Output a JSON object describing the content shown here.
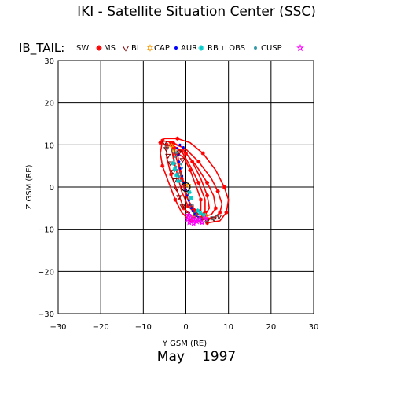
{
  "title": "IKI - Satellite Situation Center (SSC)",
  "footer": {
    "month": "May",
    "year": "1997"
  },
  "legend": {
    "heading": "IB_TAIL:",
    "entries": [
      {
        "label": "SW",
        "symbol": "asterisk",
        "color": "#ff0000"
      },
      {
        "label": "MS",
        "symbol": "triangle",
        "color": "#800000"
      },
      {
        "label": "BL",
        "symbol": "hexstar",
        "color": "#ff9900"
      },
      {
        "label": "CAP",
        "symbol": "dot",
        "color": "#0000ff"
      },
      {
        "label": "AUR",
        "symbol": "asterisk",
        "color": "#00cccc"
      },
      {
        "label": "RB",
        "symbol": "square",
        "color": "#555555"
      },
      {
        "label": "LOBS",
        "symbol": "dot",
        "color": "#3399aa"
      },
      {
        "label": "CUSP",
        "symbol": "star",
        "color": "#ff00ff"
      }
    ]
  },
  "chart_data": {
    "type": "scatter",
    "title": "IKI - Satellite Situation Center (SSC)",
    "xlabel": "Y GSM (RE)",
    "ylabel": "Z GSM (RE)",
    "xlim": [
      -30,
      30
    ],
    "ylim": [
      -30,
      30
    ],
    "xticks": [
      -30,
      -20,
      -10,
      0,
      10,
      20,
      30
    ],
    "yticks": [
      -30,
      -20,
      -10,
      0,
      10,
      20,
      30
    ],
    "grid": true,
    "series": [
      {
        "name": "SW",
        "color": "#ff0000",
        "style": "curves",
        "curves": [
          [
            [
              -5.5,
              11
            ],
            [
              -6,
              8
            ],
            [
              -5.5,
              5
            ],
            [
              -4,
              1
            ],
            [
              -2.5,
              -3
            ],
            [
              -1,
              -6
            ],
            [
              1,
              -8
            ],
            [
              3,
              -8
            ],
            [
              5,
              -7.5
            ],
            [
              7,
              -7
            ],
            [
              8,
              -6
            ],
            [
              8.5,
              -4
            ],
            [
              7.5,
              -1
            ],
            [
              6,
              2
            ],
            [
              3,
              6
            ],
            [
              0,
              9
            ],
            [
              -3,
              10.5
            ],
            [
              -5.5,
              11
            ]
          ],
          [
            [
              -4.5,
              10
            ],
            [
              -4.5,
              7
            ],
            [
              -3.5,
              3
            ],
            [
              -2,
              -1
            ],
            [
              -0.5,
              -5
            ],
            [
              1.5,
              -7
            ],
            [
              4,
              -7
            ],
            [
              6,
              -6.5
            ],
            [
              7,
              -5
            ],
            [
              6.5,
              -2
            ],
            [
              5,
              1
            ],
            [
              2.5,
              5
            ],
            [
              0,
              8
            ],
            [
              -2.5,
              9.5
            ],
            [
              -4.5,
              10
            ]
          ],
          [
            [
              -3.5,
              10.5
            ],
            [
              -3,
              7
            ],
            [
              -2,
              3
            ],
            [
              -1,
              -1
            ],
            [
              0.5,
              -4.5
            ],
            [
              2.5,
              -6.5
            ],
            [
              4.5,
              -6.5
            ],
            [
              5.5,
              -5
            ],
            [
              5,
              -2
            ],
            [
              3.5,
              2
            ],
            [
              1.5,
              6
            ],
            [
              -1,
              9.5
            ],
            [
              -3.5,
              10.5
            ]
          ],
          [
            [
              -3,
              9.5
            ],
            [
              -2,
              6
            ],
            [
              -1,
              2
            ],
            [
              0,
              -2
            ],
            [
              1.5,
              -5
            ],
            [
              3,
              -6.5
            ],
            [
              4.5,
              -6
            ],
            [
              4.5,
              -3
            ],
            [
              3,
              1
            ],
            [
              1,
              5
            ],
            [
              -1,
              8.5
            ],
            [
              -3,
              9.5
            ]
          ],
          [
            [
              -6,
              10.5
            ],
            [
              -5,
              11.5
            ],
            [
              -2,
              11.5
            ],
            [
              1,
              10.5
            ],
            [
              4,
              8
            ],
            [
              7,
              4
            ],
            [
              9,
              0
            ],
            [
              10,
              -3
            ],
            [
              9.5,
              -6
            ],
            [
              8,
              -8
            ],
            [
              5,
              -8.5
            ]
          ],
          [
            [
              -2,
              8
            ],
            [
              -1.5,
              5
            ],
            [
              -0.5,
              1
            ],
            [
              0.5,
              -3
            ],
            [
              2,
              -5.5
            ],
            [
              3.5,
              -5.5
            ],
            [
              3.5,
              -3
            ],
            [
              2.5,
              0
            ],
            [
              1,
              4
            ],
            [
              -0.5,
              7
            ],
            [
              -2,
              8
            ]
          ]
        ]
      },
      {
        "name": "MS",
        "color": "#800000",
        "style": "markers",
        "marker": "triangle",
        "points": [
          [
            -5,
            10.5
          ],
          [
            -4.6,
            9
          ],
          [
            -4.2,
            7.4
          ],
          [
            -3.6,
            5.6
          ],
          [
            -3,
            3.6
          ],
          [
            -2.6,
            1.6
          ],
          [
            -2.2,
            -0.4
          ],
          [
            -1.6,
            -2.4
          ],
          [
            -0.8,
            -4.6
          ],
          [
            0.4,
            -6.4
          ],
          [
            1.8,
            -7.6
          ],
          [
            3.4,
            -8.2
          ],
          [
            5,
            -8
          ],
          [
            6.6,
            -7.6
          ],
          [
            7.8,
            -7
          ],
          [
            -1.6,
            8.2
          ],
          [
            -0.8,
            6.4
          ]
        ]
      },
      {
        "name": "BL",
        "color": "#ff9900",
        "style": "markers",
        "marker": "hexstar",
        "points": [
          [
            -3.4,
            9.8
          ],
          [
            -2.8,
            8.6
          ],
          [
            0.6,
            0.4
          ],
          [
            2,
            -7.2
          ],
          [
            4.6,
            -6.8
          ]
        ]
      },
      {
        "name": "CAP",
        "color": "#0000ff",
        "style": "markers",
        "marker": "dot",
        "points": [
          [
            -2,
            9.2
          ],
          [
            -1.8,
            7.6
          ],
          [
            -1.6,
            6
          ],
          [
            -1.3,
            4.4
          ],
          [
            -0.9,
            2.6
          ],
          [
            -0.5,
            1
          ],
          [
            0,
            -0.6
          ],
          [
            0.4,
            -2
          ],
          [
            0.7,
            -3.2
          ],
          [
            1,
            -4.2
          ],
          [
            1.3,
            -5
          ],
          [
            1.6,
            -5.7
          ],
          [
            2,
            -6.3
          ],
          [
            2.5,
            -6.8
          ],
          [
            3,
            -7.2
          ],
          [
            3.6,
            -7.5
          ],
          [
            -1.4,
            10
          ],
          [
            -0.6,
            9.4
          ]
        ]
      },
      {
        "name": "AUR",
        "color": "#00cccc",
        "style": "markers",
        "marker": "asterisk",
        "points": [
          [
            -3,
            5.6
          ],
          [
            -2.6,
            4.2
          ],
          [
            -2.2,
            2.8
          ],
          [
            -1.8,
            1.4
          ],
          [
            0.8,
            -1.2
          ],
          [
            1.2,
            -2.6
          ],
          [
            2.8,
            -5.6
          ],
          [
            3.4,
            -6.2
          ],
          [
            4.2,
            -6.6
          ]
        ]
      },
      {
        "name": "RB",
        "color": "#555555",
        "style": "markers",
        "marker": "square",
        "points": [
          [
            -4.5,
            9.5
          ],
          [
            -3,
            8.6
          ],
          [
            -2.5,
            7.6
          ],
          [
            -1.5,
            3
          ],
          [
            0.2,
            -1.8
          ],
          [
            1.4,
            -4.6
          ],
          [
            2.2,
            -6.4
          ],
          [
            3.2,
            -7.6
          ],
          [
            4.6,
            -7.8
          ],
          [
            6.2,
            -7.4
          ],
          [
            7.2,
            -7.2
          ]
        ]
      },
      {
        "name": "LOBS",
        "color": "#3399aa",
        "style": "markers",
        "marker": "dot",
        "points": [
          [
            -2.8,
            6.4
          ],
          [
            -2.5,
            5.6
          ],
          [
            -2.3,
            4.8
          ],
          [
            -2.1,
            4
          ],
          [
            -1.9,
            3.2
          ],
          [
            -1.6,
            2.4
          ],
          [
            -1.2,
            1.5
          ],
          [
            -0.8,
            0.7
          ],
          [
            -2.2,
            8.2
          ],
          [
            -2.6,
            7.2
          ],
          [
            -1.1,
            5.4
          ],
          [
            -0.9,
            4.6
          ]
        ]
      },
      {
        "name": "CUSP",
        "color": "#ff00ff",
        "style": "markers",
        "marker": "star",
        "points": [
          [
            0.6,
            -6.6
          ],
          [
            1.2,
            -7.2
          ],
          [
            1.6,
            -8
          ],
          [
            0.8,
            -8.4
          ],
          [
            1.8,
            -8.6
          ],
          [
            2.6,
            -8.2
          ],
          [
            3.2,
            -7.6
          ],
          [
            3.8,
            -8.4
          ],
          [
            0.4,
            -7.6
          ],
          [
            2.2,
            -7.6
          ],
          [
            4.6,
            -7.4
          ]
        ]
      }
    ],
    "annotations": [
      {
        "type": "earth-circle",
        "x": 0,
        "y": 0,
        "radius": 1,
        "color": "#000000"
      }
    ]
  }
}
